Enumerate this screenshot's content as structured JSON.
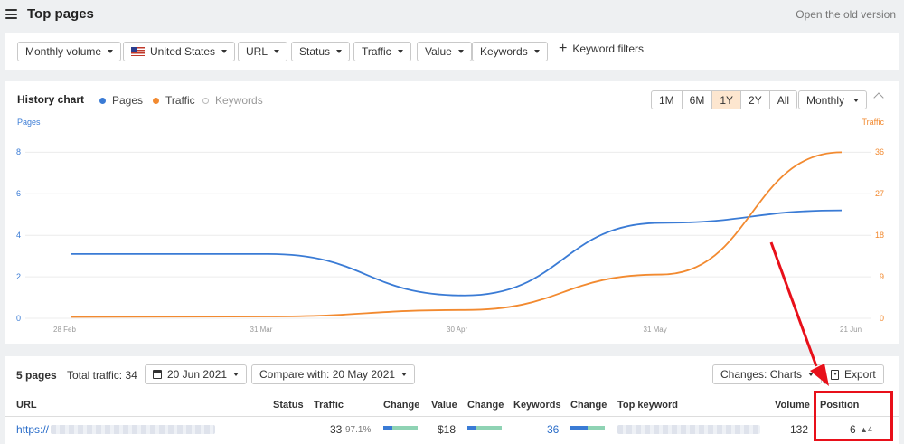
{
  "header": {
    "title": "Top pages",
    "old_version_link": "Open the old version",
    "menu_icon": "hamburger-icon"
  },
  "filters": [
    {
      "label": "Monthly volume"
    },
    {
      "label": "United States",
      "icon": "us-flag-icon"
    },
    {
      "label": "URL"
    },
    {
      "label": "Status"
    },
    {
      "label": "Traffic"
    },
    {
      "label": "Value"
    },
    {
      "label": "Keywords"
    }
  ],
  "keyword_filters_label": "Keyword filters",
  "history": {
    "title": "History chart",
    "legend": [
      {
        "label": "Pages",
        "color": "#3a7bd5",
        "state": "active"
      },
      {
        "label": "Traffic",
        "color": "#f28a30",
        "state": "active"
      },
      {
        "label": "Keywords",
        "color": "#bbbbbb",
        "state": "inactive"
      }
    ],
    "ranges": [
      "1M",
      "6M",
      "1Y",
      "2Y",
      "All"
    ],
    "active_range": "1Y",
    "interval": "Monthly"
  },
  "chart_data": {
    "type": "line",
    "x": [
      "28 Feb",
      "31 Mar",
      "30 Apr",
      "31 May",
      "21 Jun"
    ],
    "left_axis": {
      "label": "Pages",
      "ticks": [
        0,
        2,
        4,
        6,
        8
      ],
      "ylim": [
        0,
        8
      ],
      "color": "#3a7bd5"
    },
    "right_axis": {
      "label": "Traffic",
      "ticks": [
        0,
        9,
        18,
        27,
        36
      ],
      "ylim": [
        0,
        36
      ],
      "color": "#f28a30"
    },
    "series": [
      {
        "name": "Pages",
        "axis": "left",
        "color": "#3a7bd5",
        "values": [
          3.1,
          3.1,
          1.1,
          4.6,
          5.2
        ]
      },
      {
        "name": "Traffic",
        "axis": "right",
        "color": "#f28a30",
        "values": [
          0.3,
          0.4,
          1.8,
          9.5,
          36
        ]
      }
    ],
    "grid": true
  },
  "table": {
    "summary": {
      "pages": "5 pages",
      "total_traffic": "Total traffic: 34",
      "date": "20 Jun 2021",
      "compare": "Compare with: 20 May 2021",
      "changes": "Changes: Charts",
      "export": "Export"
    },
    "columns": [
      "URL",
      "Status",
      "Traffic",
      "Change",
      "Value",
      "Change",
      "Keywords",
      "Change",
      "Top keyword",
      "Volume",
      "Position"
    ],
    "rows": [
      {
        "url": "https://",
        "traffic": "33",
        "traffic_pct": "97.1%",
        "traffic_change_fraction": 0.25,
        "value": "$18",
        "value_change_fraction": 0.25,
        "keywords": "36",
        "keywords_change_fraction": 0.5,
        "volume": "132",
        "position": "6",
        "position_change": "4"
      }
    ]
  }
}
